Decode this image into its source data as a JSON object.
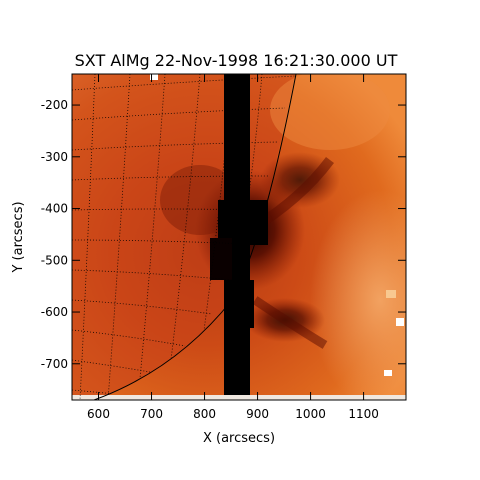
{
  "title": "SXT AlMg 22-Nov-1998 16:21:30.000 UT",
  "axes": {
    "xlabel": "X (arcsecs)",
    "ylabel": "Y (arcsecs)",
    "xlim": [
      550,
      1180
    ],
    "ylim": [
      -770,
      -140
    ],
    "x_ticks": [
      600,
      700,
      800,
      900,
      1000,
      1100
    ],
    "y_ticks": [
      -200,
      -300,
      -400,
      -500,
      -600,
      -700
    ]
  },
  "image": {
    "colormap": "solar red-orange",
    "limb": "dotted heliographic grid on disk; solid limb arc",
    "features": "dark saturated vertical bleed column near X≈870; dark loop structures around X≈830–950"
  }
}
